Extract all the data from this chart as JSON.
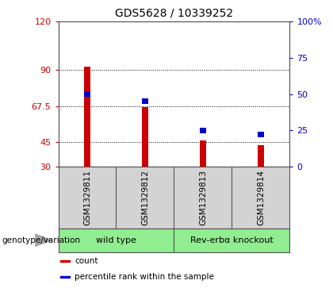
{
  "title": "GDS5628 / 10339252",
  "samples": [
    "GSM1329811",
    "GSM1329812",
    "GSM1329813",
    "GSM1329814"
  ],
  "count_values": [
    92,
    67,
    46,
    43
  ],
  "percentile_values": [
    50,
    45,
    25,
    22
  ],
  "ylim_left": [
    30,
    120
  ],
  "ylim_right": [
    0,
    100
  ],
  "yticks_left": [
    30,
    45,
    67.5,
    90,
    120
  ],
  "yticks_right": [
    0,
    25,
    50,
    75,
    100
  ],
  "ytick_labels_right": [
    "0",
    "25",
    "50",
    "75",
    "100%"
  ],
  "left_color": "#cc0000",
  "right_color": "#0000cc",
  "bar_color": "#cc0000",
  "percentile_color": "#0000cc",
  "bg_color": "#ffffff",
  "plot_bg": "#ffffff",
  "groups": [
    {
      "label": "wild type",
      "indices": [
        0,
        1
      ],
      "color": "#90ee90"
    },
    {
      "label": "Rev-erbα knockout",
      "indices": [
        2,
        3
      ],
      "color": "#90ee90"
    }
  ],
  "genotype_label": "genotype/variation",
  "legend_items": [
    {
      "color": "#cc0000",
      "label": "count"
    },
    {
      "color": "#0000cc",
      "label": "percentile rank within the sample"
    }
  ],
  "bar_width": 0.12,
  "bar_bottom": 30,
  "grid_ticks": [
    90,
    67.5,
    45
  ],
  "label_area_color": "#d3d3d3",
  "spine_color": "#555555"
}
